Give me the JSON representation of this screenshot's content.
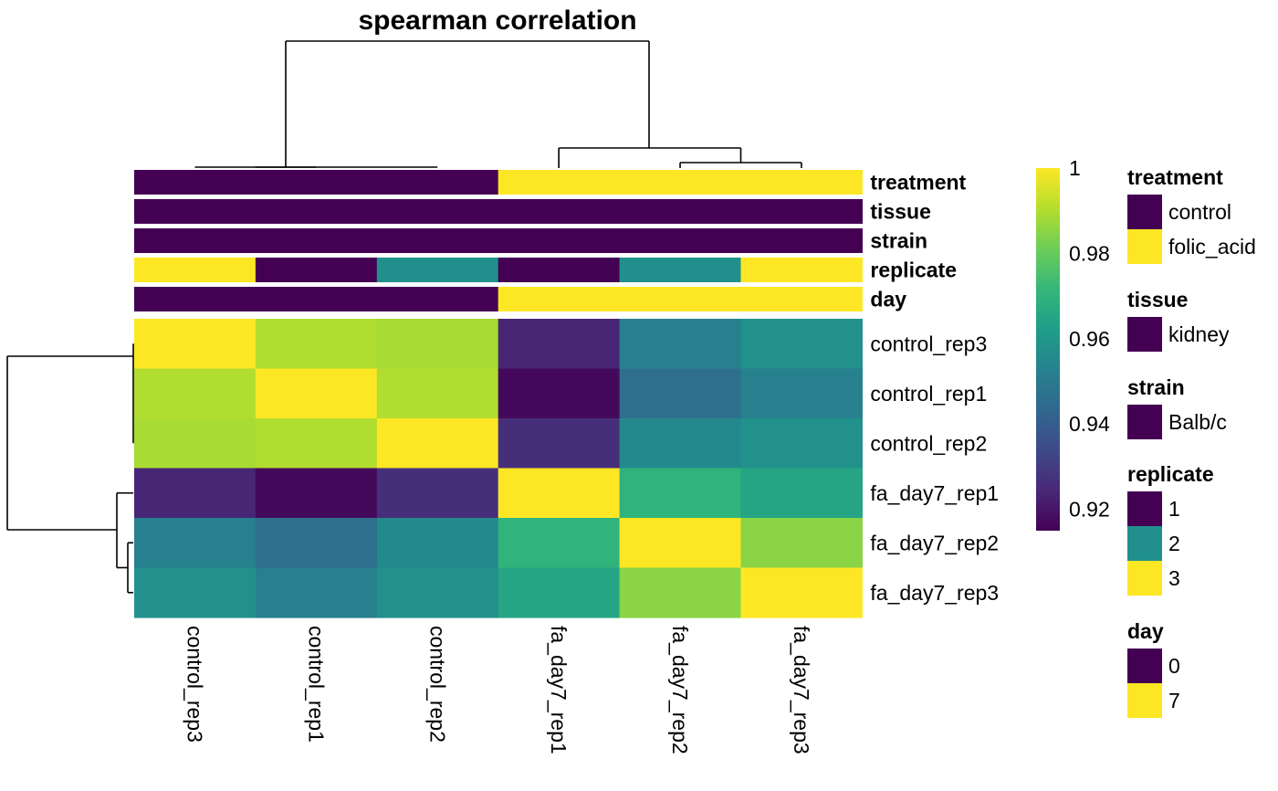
{
  "chart_data": {
    "type": "heatmap",
    "title": "spearman correlation",
    "rows": [
      "control_rep3",
      "control_rep1",
      "control_rep2",
      "fa_day7_rep1",
      "fa_day7_rep2",
      "fa_day7_rep3"
    ],
    "columns": [
      "control_rep3",
      "control_rep1",
      "control_rep2",
      "fa_day7_rep1",
      "fa_day7_rep2",
      "fa_day7_rep3"
    ],
    "values": [
      [
        1.0,
        0.99,
        0.989,
        0.924,
        0.952,
        0.958
      ],
      [
        0.99,
        1.0,
        0.99,
        0.917,
        0.946,
        0.952
      ],
      [
        0.989,
        0.99,
        1.0,
        0.926,
        0.955,
        0.958
      ],
      [
        0.924,
        0.917,
        0.926,
        1.0,
        0.97,
        0.965
      ],
      [
        0.952,
        0.946,
        0.955,
        0.97,
        1.0,
        0.985
      ],
      [
        0.958,
        0.952,
        0.958,
        0.965,
        0.985,
        1.0
      ]
    ],
    "colorscale": "viridis",
    "color_range": [
      0.915,
      1.0
    ],
    "colorbar_ticks": [
      1,
      0.98,
      0.96,
      0.94,
      0.92
    ],
    "colorbar_tick_labels": [
      "1",
      "0.98",
      "0.96",
      "0.94",
      "0.92"
    ],
    "annotations": [
      {
        "name": "treatment",
        "values": [
          "control",
          "control",
          "control",
          "folic_acid",
          "folic_acid",
          "folic_acid"
        ]
      },
      {
        "name": "tissue",
        "values": [
          "kidney",
          "kidney",
          "kidney",
          "kidney",
          "kidney",
          "kidney"
        ]
      },
      {
        "name": "strain",
        "values": [
          "Balb/c",
          "Balb/c",
          "Balb/c",
          "Balb/c",
          "Balb/c",
          "Balb/c"
        ]
      },
      {
        "name": "replicate",
        "values": [
          "3",
          "1",
          "2",
          "1",
          "2",
          "3"
        ]
      },
      {
        "name": "day",
        "values": [
          "0",
          "0",
          "0",
          "7",
          "7",
          "7"
        ]
      }
    ],
    "legends": [
      {
        "title": "treatment",
        "entries": [
          {
            "label": "control",
            "color": "#440154"
          },
          {
            "label": "folic_acid",
            "color": "#FDE725"
          }
        ]
      },
      {
        "title": "tissue",
        "entries": [
          {
            "label": "kidney",
            "color": "#440154"
          }
        ]
      },
      {
        "title": "strain",
        "entries": [
          {
            "label": "Balb/c",
            "color": "#440154"
          }
        ]
      },
      {
        "title": "replicate",
        "entries": [
          {
            "label": "1",
            "color": "#440154"
          },
          {
            "label": "2",
            "color": "#21908C"
          },
          {
            "label": "3",
            "color": "#FDE725"
          }
        ]
      },
      {
        "title": "day",
        "entries": [
          {
            "label": "0",
            "color": "#440154"
          },
          {
            "label": "7",
            "color": "#FDE725"
          }
        ]
      }
    ],
    "dendrogram": "hierarchical clustering on rows and columns"
  }
}
